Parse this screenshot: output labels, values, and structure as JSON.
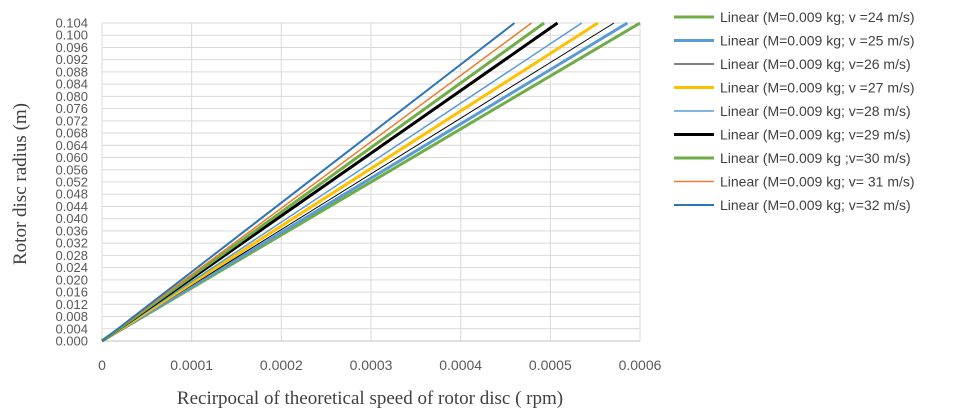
{
  "chart_data": {
    "type": "line",
    "title": "",
    "xlabel": "Recirpocal of theoretical speed of rotor disc ( rpm)",
    "ylabel": "Rotor disc radius (m)",
    "xlim": [
      0,
      0.0006
    ],
    "ylim": [
      0,
      0.104
    ],
    "x_ticks": [
      "0",
      "0.0001",
      "0.0002",
      "0.0003",
      "0.0004",
      "0.0005",
      "0.0006"
    ],
    "y_ticks": [
      "0.000",
      "0.004",
      "0.008",
      "0.012",
      "0.016",
      "0.020",
      "0.024",
      "0.028",
      "0.032",
      "0.036",
      "0.040",
      "0.044",
      "0.048",
      "0.052",
      "0.056",
      "0.060",
      "0.064",
      "0.068",
      "0.072",
      "0.076",
      "0.080",
      "0.084",
      "0.088",
      "0.092",
      "0.096",
      "0.100",
      "0.104"
    ],
    "grid": "vertical",
    "legend_position": "right",
    "series": [
      {
        "name": "Linear (M=0.009 kg; v =24 m/s)",
        "color": "#70ad47",
        "width": 3,
        "x": [
          0,
          0.0006
        ],
        "y": [
          0,
          0.104
        ]
      },
      {
        "name": "Linear (M=0.009 kg; v =25 m/s)",
        "color": "#5b9bd5",
        "width": 3,
        "x": [
          0,
          0.000586
        ],
        "y": [
          0,
          0.104
        ]
      },
      {
        "name": "Linear (M=0.009 kg; v=26 m/s)",
        "color": "#000000",
        "width": 1,
        "x": [
          0,
          0.000571
        ],
        "y": [
          0,
          0.104
        ]
      },
      {
        "name": "Linear (M=0.009 kg; v =27 m/s)",
        "color": "#ffc000",
        "width": 3,
        "x": [
          0,
          0.000553
        ],
        "y": [
          0,
          0.104
        ]
      },
      {
        "name": "Linear (M=0.009 kg; v=28 m/s)",
        "color": "#5b9bd5",
        "width": 1.5,
        "x": [
          0,
          0.000535
        ],
        "y": [
          0,
          0.104
        ]
      },
      {
        "name": "Linear (M=0.009 kg; v=29 m/s)",
        "color": "#000000",
        "width": 3,
        "x": [
          0,
          0.000508
        ],
        "y": [
          0,
          0.104
        ]
      },
      {
        "name": "Linear (M=0.009 kg ;v=30 m/s)",
        "color": "#70ad47",
        "width": 3,
        "x": [
          0,
          0.000493
        ],
        "y": [
          0,
          0.104
        ]
      },
      {
        "name": "Linear (M=0.009 kg; v= 31 m/s)",
        "color": "#ed7d31",
        "width": 1.5,
        "x": [
          0,
          0.000479
        ],
        "y": [
          0,
          0.104
        ]
      },
      {
        "name": "Linear (M=0.009 kg; v=32 m/s)",
        "color": "#2e75b6",
        "width": 2,
        "x": [
          0,
          0.00046
        ],
        "y": [
          0,
          0.104
        ]
      }
    ]
  }
}
